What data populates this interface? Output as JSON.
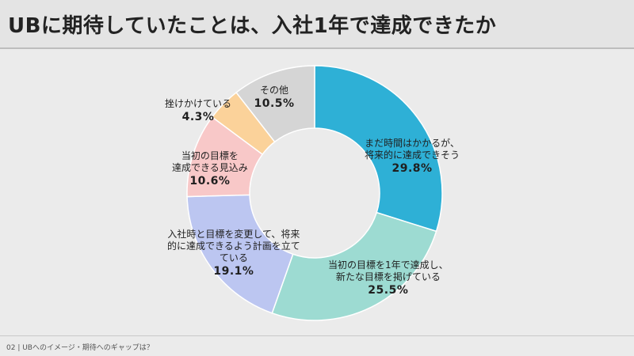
{
  "title": "UBに期待していたことは、入社1年で達成できたか",
  "footer": "02 | UBへのイメージ・期待へのギャップは？",
  "chart_data": {
    "type": "pie",
    "slices": [
      {
        "label_lines": [
          "まだ時間はかかるが、",
          "将来的に達成できそう"
        ],
        "value": 29.8,
        "pct": "29.8%",
        "color": "#2eb0d6"
      },
      {
        "label_lines": [
          "当初の目標を1年で達成し、",
          "新たな目標を掲げている"
        ],
        "value": 25.5,
        "pct": "25.5%",
        "color": "#9ddbd2"
      },
      {
        "label_lines": [
          "入社時と目標を変更して、将来",
          "的に達成できるよう計画を立て",
          "ている"
        ],
        "value": 19.1,
        "pct": "19.1%",
        "color": "#bcc6f1"
      },
      {
        "label_lines": [
          "当初の目標を",
          "達成できる見込み"
        ],
        "value": 10.6,
        "pct": "10.6%",
        "color": "#f8c8c8"
      },
      {
        "label_lines": [
          "挫けかけている"
        ],
        "value": 4.3,
        "pct": "4.3%",
        "color": "#fbd29a"
      },
      {
        "label_lines": [
          "その他"
        ],
        "value": 10.5,
        "pct": "10.5%",
        "color": "#d5d5d5"
      }
    ]
  }
}
